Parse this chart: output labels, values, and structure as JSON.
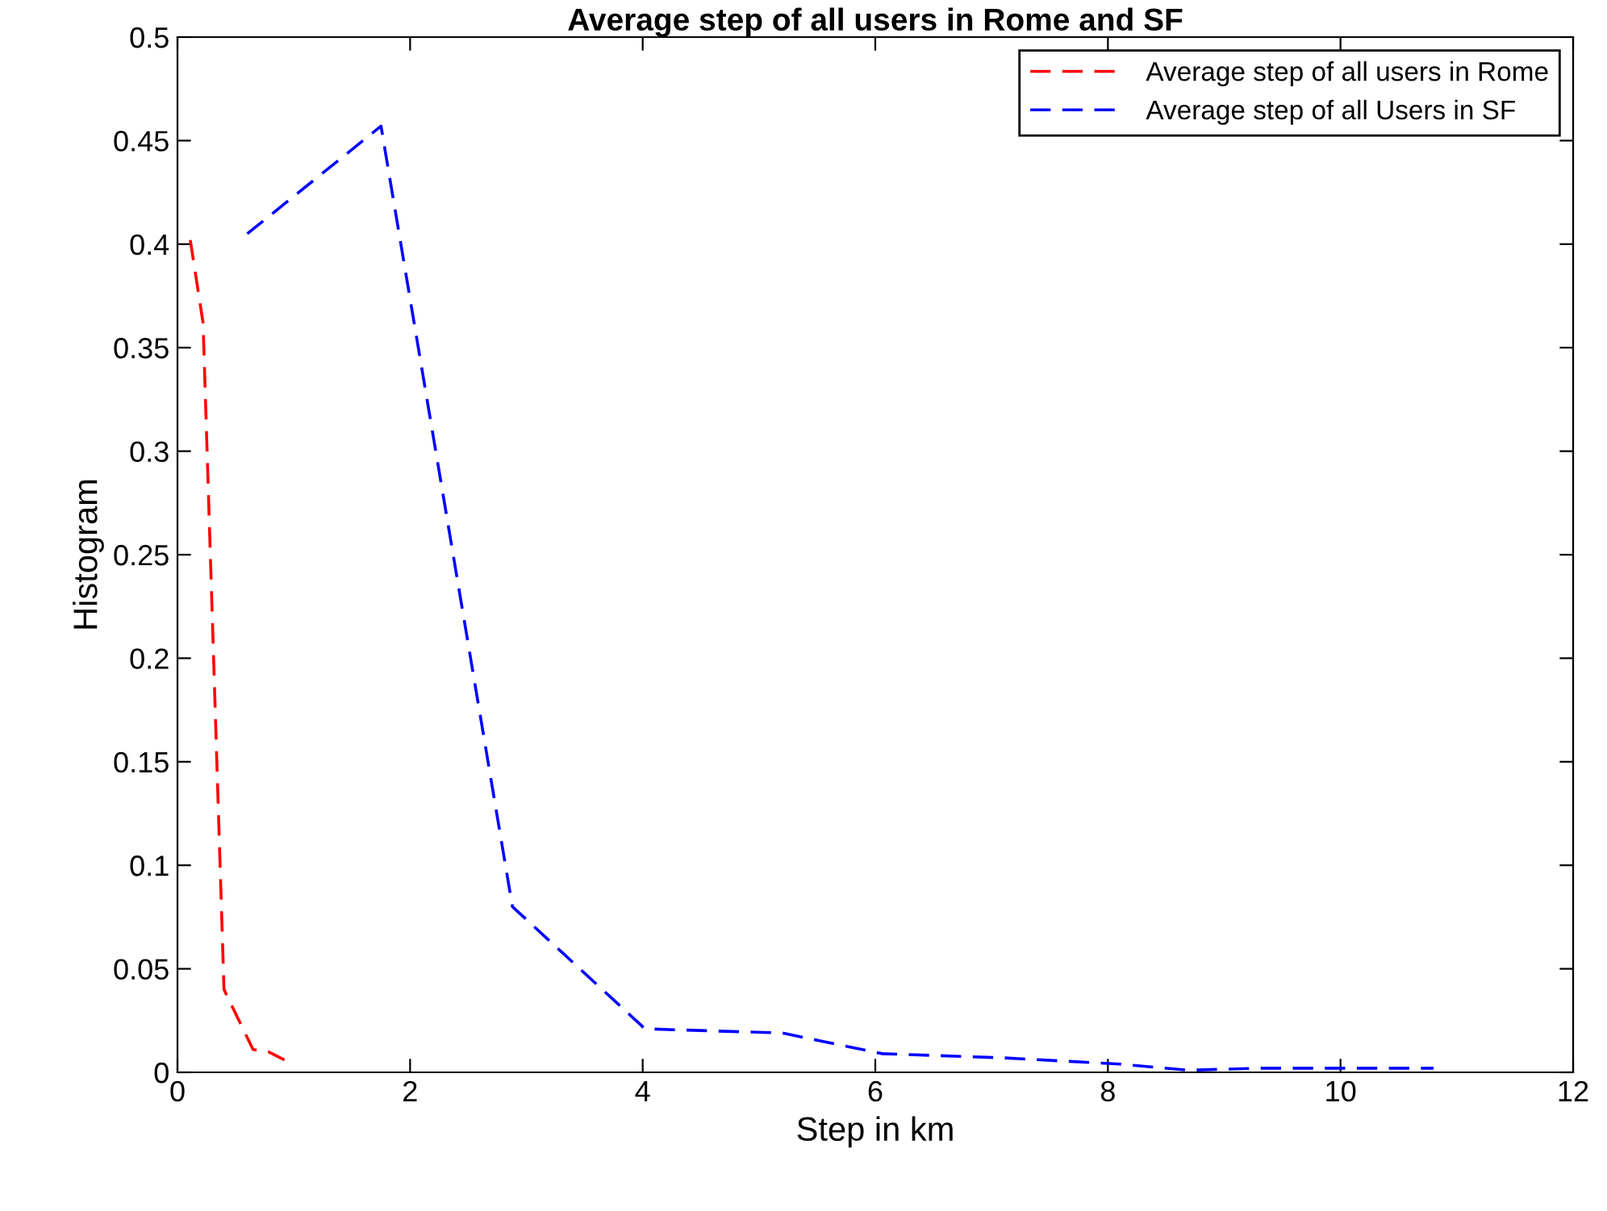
{
  "chart_data": {
    "type": "line",
    "title": "Average step of all users in Rome and SF",
    "xlabel": "Step in km",
    "ylabel": "Histogram",
    "series": [
      {
        "name": "Average step of all users in Rome",
        "color": "#ff0000",
        "x": [
          0.11,
          0.22,
          0.4,
          0.65,
          0.78,
          0.92
        ],
        "values": [
          0.402,
          0.362,
          0.04,
          0.011,
          0.01,
          0.006
        ]
      },
      {
        "name": "Average step of all Users in SF",
        "color": "#0000ff",
        "x": [
          0.6,
          1.75,
          2.88,
          4.02,
          5.2,
          6.06,
          7.1,
          8.1,
          8.7,
          9.3,
          10.8
        ],
        "values": [
          0.405,
          0.457,
          0.08,
          0.021,
          0.019,
          0.009,
          0.007,
          0.004,
          0.001,
          0.002,
          0.002
        ]
      }
    ],
    "xlim": [
      0,
      12
    ],
    "xticks": [
      0,
      2,
      4,
      6,
      8,
      10,
      12
    ],
    "ylim": [
      0,
      0.5
    ],
    "yticks": [
      0,
      0.05,
      0.1,
      0.15,
      0.2,
      0.25,
      0.3,
      0.35,
      0.4,
      0.45,
      0.5
    ],
    "legend": "top right",
    "line_style": "dashed",
    "marker": "none",
    "grid": false
  }
}
